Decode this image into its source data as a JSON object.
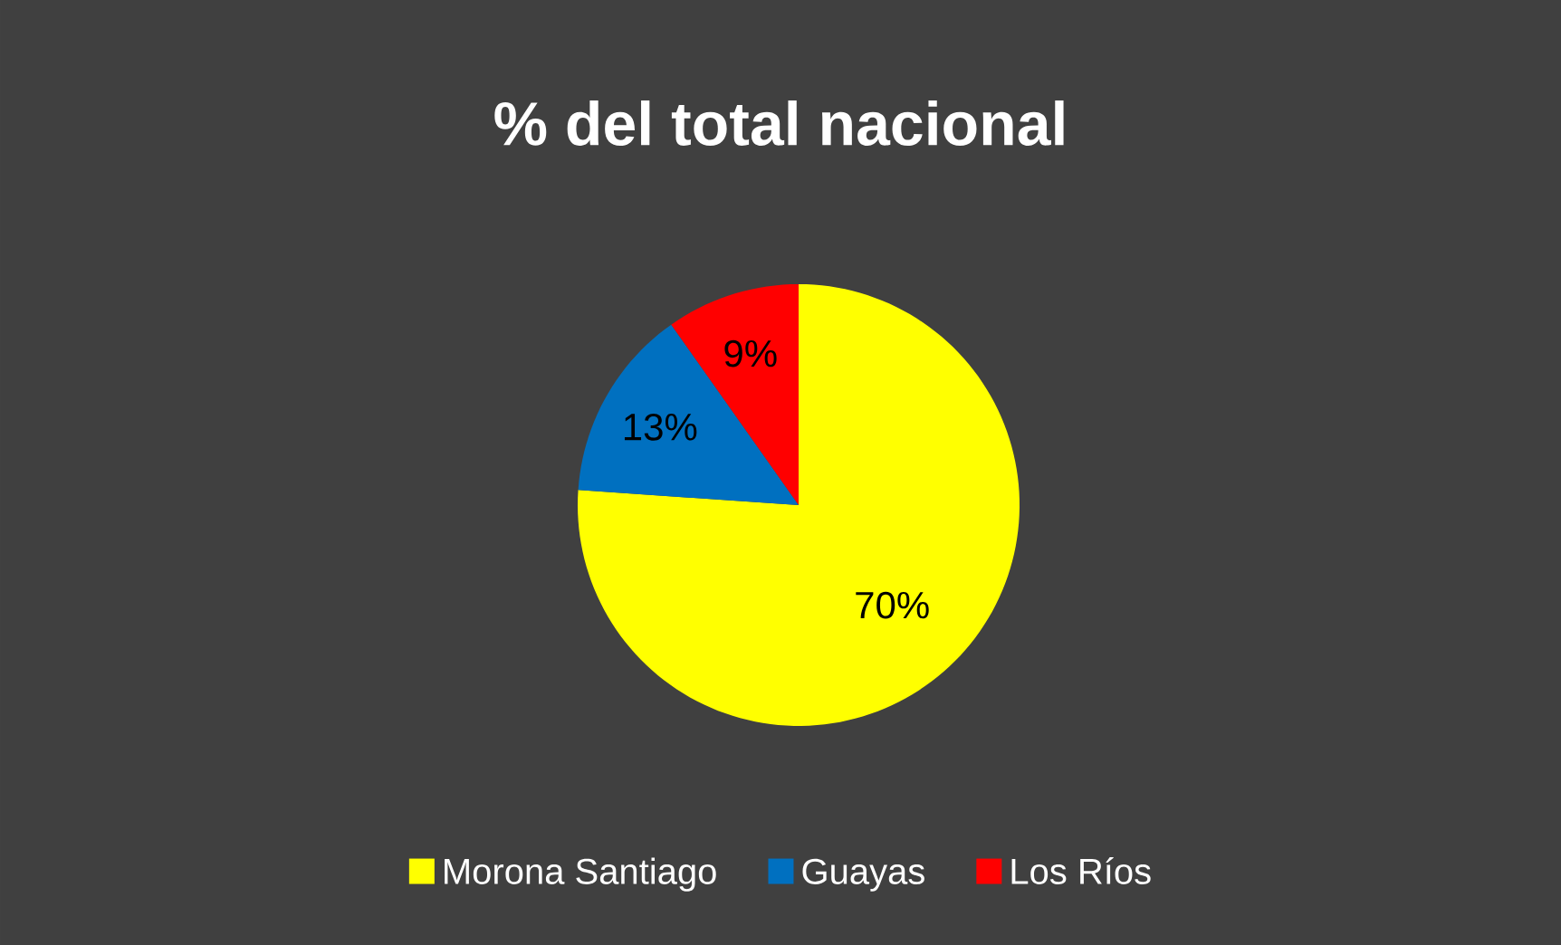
{
  "chart_data": {
    "type": "pie",
    "title": "% del total nacional",
    "categories": [
      "Morona Santiago",
      "Guayas",
      "Los Ríos"
    ],
    "values": [
      70,
      13,
      9
    ],
    "value_labels": [
      "70%",
      "13%",
      "9%"
    ],
    "colors": [
      "#ffff00",
      "#0070c0",
      "#ff0000"
    ],
    "legend": "bottom"
  }
}
